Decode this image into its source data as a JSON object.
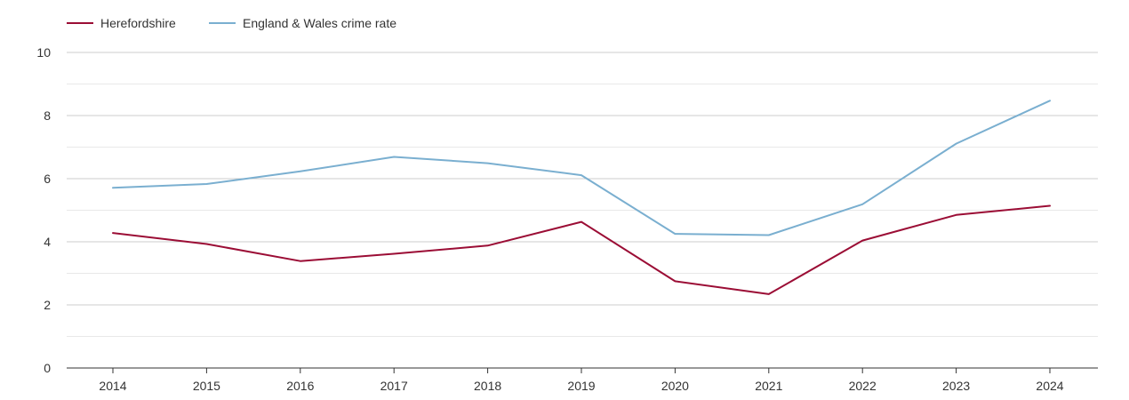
{
  "chart_data": {
    "type": "line",
    "title": "",
    "xlabel": "",
    "ylabel": "",
    "categories": [
      "2014",
      "2015",
      "2016",
      "2017",
      "2018",
      "2019",
      "2020",
      "2021",
      "2022",
      "2023",
      "2024"
    ],
    "ylim": [
      0,
      10
    ],
    "yticks": [
      0,
      2,
      4,
      6,
      8,
      10
    ],
    "grid": true,
    "legend_position": "top-left",
    "series": [
      {
        "name": "Herefordshire",
        "color": "#9b0d35",
        "values": [
          4.28,
          3.93,
          3.39,
          3.62,
          3.88,
          4.63,
          2.75,
          2.34,
          4.04,
          4.85,
          5.14
        ]
      },
      {
        "name": "England & Wales crime rate",
        "color": "#7aafd0",
        "values": [
          5.71,
          5.83,
          6.23,
          6.69,
          6.49,
          6.11,
          4.25,
          4.21,
          5.19,
          7.11,
          8.47
        ]
      }
    ]
  }
}
